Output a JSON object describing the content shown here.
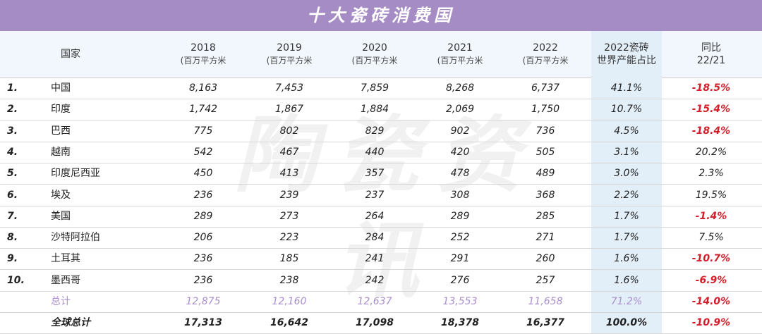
{
  "title": "十大瓷砖消费国",
  "watermark": "陶瓷资讯",
  "header": {
    "country": "国家",
    "years": [
      "2018",
      "2019",
      "2020",
      "2021",
      "2022"
    ],
    "unit": "(百万平方米",
    "share_line1": "2022瓷砖",
    "share_line2": "世界产能占比",
    "yoy_line1": "同比",
    "yoy_line2": "22/21"
  },
  "rows": [
    {
      "rank": "1.",
      "country": "中国",
      "v": [
        "8,163",
        "7,453",
        "7,859",
        "8,268",
        "6,737"
      ],
      "share": "41.1%",
      "yoy": "-18.5%"
    },
    {
      "rank": "2.",
      "country": "印度",
      "v": [
        "1,742",
        "1,867",
        "1,884",
        "2,069",
        "1,750"
      ],
      "share": "10.7%",
      "yoy": "-15.4%"
    },
    {
      "rank": "3.",
      "country": "巴西",
      "v": [
        "775",
        "802",
        "829",
        "902",
        "736"
      ],
      "share": "4.5%",
      "yoy": "-18.4%"
    },
    {
      "rank": "4.",
      "country": "越南",
      "v": [
        "542",
        "467",
        "440",
        "420",
        "505"
      ],
      "share": "3.1%",
      "yoy": "20.2%"
    },
    {
      "rank": "5.",
      "country": "印度尼西亚",
      "v": [
        "450",
        "413",
        "357",
        "478",
        "489"
      ],
      "share": "3.0%",
      "yoy": "2.3%"
    },
    {
      "rank": "6.",
      "country": "埃及",
      "v": [
        "236",
        "239",
        "237",
        "308",
        "368"
      ],
      "share": "2.2%",
      "yoy": "19.5%"
    },
    {
      "rank": "7.",
      "country": "美国",
      "v": [
        "289",
        "273",
        "264",
        "289",
        "285"
      ],
      "share": "1.7%",
      "yoy": "-1.4%"
    },
    {
      "rank": "8.",
      "country": "沙特阿拉伯",
      "v": [
        "206",
        "223",
        "284",
        "252",
        "271"
      ],
      "share": "1.7%",
      "yoy": "7.5%"
    },
    {
      "rank": "9.",
      "country": "土耳其",
      "v": [
        "236",
        "185",
        "241",
        "291",
        "260"
      ],
      "share": "1.6%",
      "yoy": "-10.7%"
    },
    {
      "rank": "10.",
      "country": "墨西哥",
      "v": [
        "236",
        "238",
        "242",
        "276",
        "257"
      ],
      "share": "1.6%",
      "yoy": "-6.9%"
    }
  ],
  "total": {
    "label": "总计",
    "v": [
      "12,875",
      "12,160",
      "12,637",
      "13,553",
      "11,658"
    ],
    "share": "71.2%",
    "yoy": "-14.0%"
  },
  "global": {
    "label": "全球总计",
    "v": [
      "17,313",
      "16,642",
      "17,098",
      "18,378",
      "16,377"
    ],
    "share": "100.0%",
    "yoy": "-10.9%"
  },
  "colors": {
    "header_bar": "#a58cc4",
    "negative": "#d31f2a",
    "total_text": "#a98fcd",
    "share_column": "#e2eff9"
  }
}
